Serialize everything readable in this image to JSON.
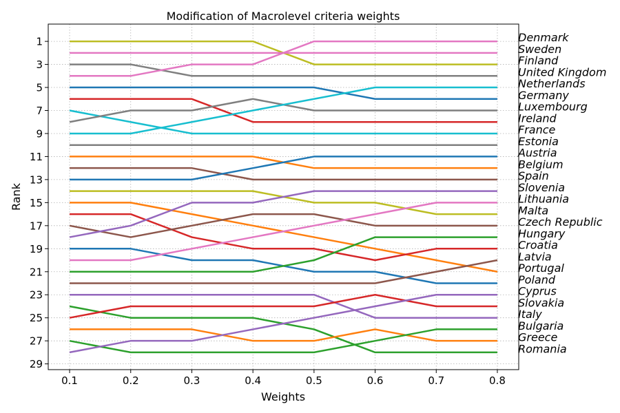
{
  "chart_data": {
    "type": "line",
    "title": "Modification of Macrolevel criteria weights",
    "xlabel": "Weights",
    "ylabel": "Rank",
    "x": [
      0.1,
      0.2,
      0.3,
      0.4,
      0.5,
      0.6,
      0.7,
      0.8
    ],
    "x_ticks": [
      "0.1",
      "0.2",
      "0.3",
      "0.4",
      "0.5",
      "0.6",
      "0.7",
      "0.8"
    ],
    "y_ticks": [
      "1",
      "3",
      "5",
      "7",
      "9",
      "11",
      "13",
      "15",
      "17",
      "19",
      "21",
      "23",
      "25",
      "27",
      "29"
    ],
    "ylim": [
      29.5,
      -0.5
    ],
    "y_inverted": true,
    "grid": true,
    "legend_placement": "right",
    "legend": [
      "Denmark",
      "Sweden",
      "Finland",
      "United Kingdom",
      "Netherlands",
      "Germany",
      "Luxembourg",
      "Ireland",
      "France",
      "Estonia",
      "Austria",
      "Belgium",
      "Spain",
      "Slovenia",
      "Lithuania",
      "Malta",
      "Czech Republic",
      "Hungary",
      "Croatia",
      "Latvia",
      "Portugal",
      "Poland",
      "Cyprus",
      "Slovakia",
      "Italy",
      "Bulgaria",
      "Greece",
      "Romania"
    ],
    "series": [
      {
        "color": "#bcbd22",
        "values": [
          1,
          1,
          1,
          1,
          3,
          3,
          3,
          3
        ]
      },
      {
        "color": "#e377c2",
        "values": [
          2,
          2,
          2,
          2,
          2,
          2,
          2,
          2
        ]
      },
      {
        "color": "#7f7f7f",
        "values": [
          3,
          3,
          4,
          4,
          4,
          4,
          4,
          4
        ]
      },
      {
        "color": "#e377c2",
        "values": [
          4,
          4,
          3,
          3,
          1,
          1,
          1,
          1
        ]
      },
      {
        "color": "#1f77b4",
        "values": [
          5,
          5,
          5,
          5,
          5,
          6,
          6,
          6
        ]
      },
      {
        "color": "#d62728",
        "values": [
          6,
          6,
          6,
          8,
          8,
          8,
          8,
          8
        ]
      },
      {
        "color": "#17becf",
        "values": [
          7,
          8,
          9,
          9,
          9,
          9,
          9,
          9
        ]
      },
      {
        "color": "#7f7f7f",
        "values": [
          8,
          7,
          7,
          6,
          7,
          7,
          7,
          7
        ]
      },
      {
        "color": "#17becf",
        "values": [
          9,
          9,
          8,
          7,
          6,
          5,
          5,
          5
        ]
      },
      {
        "color": "#7f7f7f",
        "values": [
          10,
          10,
          10,
          10,
          10,
          10,
          10,
          10
        ]
      },
      {
        "color": "#ff7f0e",
        "values": [
          11,
          11,
          11,
          11,
          12,
          12,
          12,
          12
        ]
      },
      {
        "color": "#8c564b",
        "values": [
          12,
          12,
          12,
          13,
          13,
          13,
          13,
          13
        ]
      },
      {
        "color": "#1f77b4",
        "values": [
          13,
          13,
          13,
          12,
          11,
          11,
          11,
          11
        ]
      },
      {
        "color": "#bcbd22",
        "values": [
          14,
          14,
          14,
          14,
          15,
          15,
          16,
          16
        ]
      },
      {
        "color": "#ff7f0e",
        "values": [
          15,
          15,
          16,
          17,
          18,
          19,
          20,
          21
        ]
      },
      {
        "color": "#d62728",
        "values": [
          16,
          16,
          18,
          19,
          19,
          20,
          19,
          19
        ]
      },
      {
        "color": "#8c564b",
        "values": [
          17,
          18,
          17,
          16,
          16,
          17,
          17,
          17
        ]
      },
      {
        "color": "#9467bd",
        "values": [
          18,
          17,
          15,
          15,
          14,
          14,
          14,
          14
        ]
      },
      {
        "color": "#1f77b4",
        "values": [
          19,
          19,
          20,
          20,
          21,
          21,
          22,
          22
        ]
      },
      {
        "color": "#e377c2",
        "values": [
          20,
          20,
          19,
          18,
          17,
          16,
          15,
          15
        ]
      },
      {
        "color": "#2ca02c",
        "values": [
          21,
          21,
          21,
          21,
          20,
          18,
          18,
          18
        ]
      },
      {
        "color": "#8c564b",
        "values": [
          22,
          22,
          22,
          22,
          22,
          22,
          21,
          20
        ]
      },
      {
        "color": "#9467bd",
        "values": [
          23,
          23,
          23,
          23,
          23,
          25,
          25,
          25
        ]
      },
      {
        "color": "#2ca02c",
        "values": [
          24,
          25,
          25,
          25,
          26,
          28,
          28,
          28
        ]
      },
      {
        "color": "#d62728",
        "values": [
          25,
          24,
          24,
          24,
          24,
          23,
          24,
          24
        ]
      },
      {
        "color": "#ff7f0e",
        "values": [
          26,
          26,
          26,
          27,
          27,
          26,
          27,
          27
        ]
      },
      {
        "color": "#2ca02c",
        "values": [
          27,
          28,
          28,
          28,
          28,
          27,
          26,
          26
        ]
      },
      {
        "color": "#9467bd",
        "values": [
          28,
          27,
          27,
          26,
          25,
          24,
          23,
          23
        ]
      }
    ]
  }
}
